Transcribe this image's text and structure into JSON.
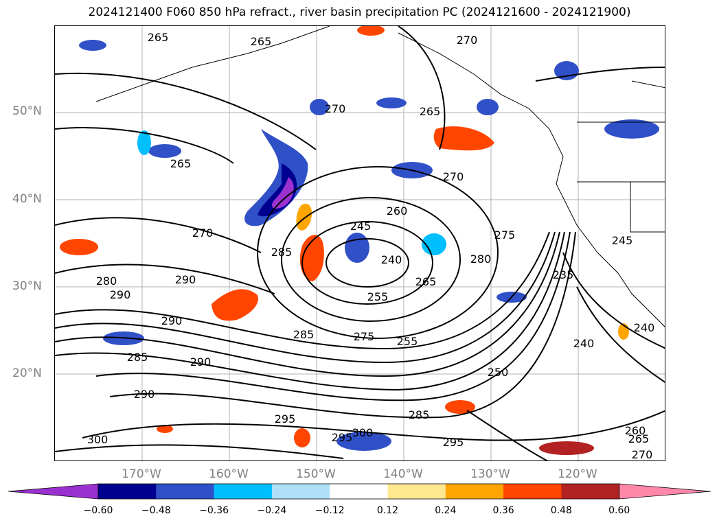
{
  "title": "2024121400 F060 850 hPa refract., river basin precipitation PC (2024121600 - 2024121900)",
  "lat_labels": [
    "50°N",
    "40°N",
    "30°N",
    "20°N"
  ],
  "lon_labels": [
    "170°W",
    "160°W",
    "150°W",
    "140°W",
    "130°W",
    "120°W"
  ],
  "contour_labels": [
    "265",
    "265",
    "270",
    "265",
    "265",
    "270",
    "260",
    "245",
    "240",
    "285",
    "270",
    "280",
    "275",
    "265",
    "255",
    "290",
    "280",
    "290",
    "290",
    "275",
    "285",
    "255",
    "250",
    "235",
    "240",
    "245",
    "240",
    "270",
    "285",
    "290",
    "290",
    "295",
    "285",
    "300",
    "295",
    "300",
    "295",
    "260",
    "265",
    "270"
  ],
  "colorbar": {
    "ticks": [
      "−0.60",
      "−0.48",
      "−0.36",
      "−0.24",
      "−0.12",
      "0.12",
      "0.24",
      "0.36",
      "0.48",
      "0.60"
    ],
    "colors": [
      "#9b30d0",
      "#000090",
      "#3050c8",
      "#00bfff",
      "#aee0f8",
      "#ffffff",
      "#ffe890",
      "#ffa500",
      "#ff4500",
      "#b22222",
      "#ff88aa"
    ]
  }
}
